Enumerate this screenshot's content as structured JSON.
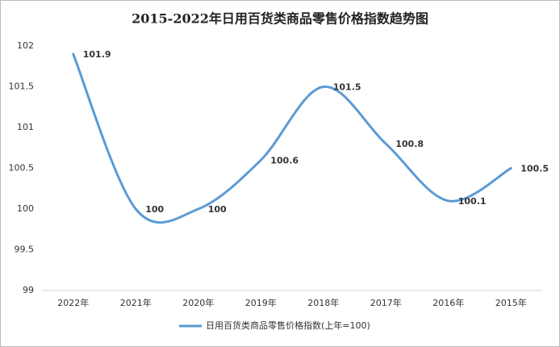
{
  "chart_data": {
    "type": "line",
    "title": "2015-2022年日用百货类商品零售价格指数趋势图",
    "categories": [
      "2022年",
      "2021年",
      "2020年",
      "2019年",
      "2018年",
      "2017年",
      "2016年",
      "2015年"
    ],
    "series": [
      {
        "name": "日用百货类商品零售价格指数(上年=100)",
        "color": "#5b9bd5",
        "values": [
          101.9,
          100,
          100,
          100.6,
          101.5,
          100.8,
          100.1,
          100.5
        ]
      }
    ],
    "ylim": [
      99,
      102
    ],
    "yticks": [
      99,
      99.5,
      100,
      100.5,
      101,
      101.5,
      102
    ],
    "grid": false,
    "smooth": true,
    "legend": "bottom"
  }
}
